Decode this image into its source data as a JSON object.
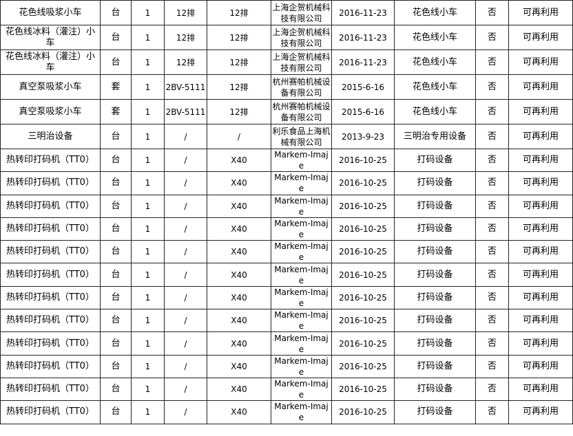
{
  "table": {
    "rows": [
      [
        "花色线吸浆小车",
        "台",
        "1",
        "12排",
        "12排",
        "上海企贺机械科技有限公司",
        "2016-11-23",
        "花色线小车",
        "否",
        "可再利用"
      ],
      [
        "花色线冰料（灌注）小车",
        "台",
        "1",
        "12排",
        "12排",
        "上海企贺机械科技有限公司",
        "2016-11-23",
        "花色线小车",
        "否",
        "可再利用"
      ],
      [
        "花色线冰料（灌注）小车",
        "台",
        "1",
        "12排",
        "12排",
        "上海企贺机械科技有限公司",
        "2016-11-23",
        "花色线小车",
        "否",
        "可再利用"
      ],
      [
        "真空泵吸浆小车",
        "套",
        "1",
        "2BV-5111",
        "12排",
        "杭州赛帕机械设备有限公司",
        "2015-6-16",
        "花色线小车",
        "否",
        "可再利用"
      ],
      [
        "真空泵吸浆小车",
        "套",
        "1",
        "2BV-5111",
        "12排",
        "杭州赛帕机械设备有限公司",
        "2015-6-16",
        "花色线小车",
        "否",
        "可再利用"
      ],
      [
        "三明治设备",
        "台",
        "1",
        "/",
        "/",
        "利乐食品上海机械有限公司",
        "2013-9-23",
        "三明治专用设备",
        "否",
        "可再利用"
      ],
      [
        "热转印打码机（TT0）",
        "台",
        "1",
        "/",
        "X40",
        "Markem-Imaje",
        "2016-10-25",
        "打码设备",
        "否",
        "可再利用"
      ],
      [
        "热转印打码机（TT0）",
        "台",
        "1",
        "/",
        "X40",
        "Markem-Imaje",
        "2016-10-25",
        "打码设备",
        "否",
        "可再利用"
      ],
      [
        "热转印打码机（TT0）",
        "台",
        "1",
        "/",
        "X40",
        "Markem-Imaje",
        "2016-10-25",
        "打码设备",
        "否",
        "可再利用"
      ],
      [
        "热转印打码机（TT0）",
        "台",
        "1",
        "/",
        "X40",
        "Markem-Imaje",
        "2016-10-25",
        "打码设备",
        "否",
        "可再利用"
      ],
      [
        "热转印打码机（TT0）",
        "台",
        "1",
        "/",
        "X40",
        "Markem-Imaje",
        "2016-10-25",
        "打码设备",
        "否",
        "可再利用"
      ],
      [
        "热转印打码机（TT0）",
        "台",
        "1",
        "/",
        "X40",
        "Markem-Imaje",
        "2016-10-25",
        "打码设备",
        "否",
        "可再利用"
      ],
      [
        "热转印打码机（TT0）",
        "台",
        "1",
        "/",
        "X40",
        "Markem-Imaje",
        "2016-10-25",
        "打码设备",
        "否",
        "可再利用"
      ],
      [
        "热转印打码机（TT0）",
        "台",
        "1",
        "/",
        "X40",
        "Markem-Imaje",
        "2016-10-25",
        "打码设备",
        "否",
        "可再利用"
      ],
      [
        "热转印打码机（TT0）",
        "台",
        "1",
        "/",
        "X40",
        "Markem-Imaje",
        "2016-10-25",
        "打码设备",
        "否",
        "可再利用"
      ],
      [
        "热转印打码机（TT0）",
        "台",
        "1",
        "/",
        "X40",
        "Markem-Imaje",
        "2016-10-25",
        "打码设备",
        "否",
        "可再利用"
      ],
      [
        "热转印打码机（TT0）",
        "台",
        "1",
        "/",
        "X40",
        "Markem-Imaje",
        "2016-10-25",
        "打码设备",
        "否",
        "可再利用"
      ],
      [
        "热转印打码机（TT0）",
        "台",
        "1",
        "/",
        "X40",
        "Markem-Imaje",
        "2016-10-25",
        "打码设备",
        "否",
        "可再利用"
      ]
    ]
  }
}
